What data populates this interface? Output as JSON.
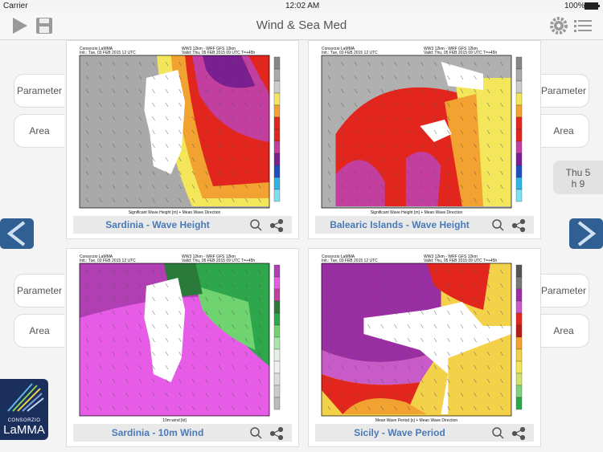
{
  "status_bar": {
    "carrier": "Carrier",
    "time": "12:02 AM",
    "battery": "100%"
  },
  "header": {
    "title": "Wind & Sea Med"
  },
  "buttons": {
    "parameter": "Parameter",
    "area": "Area"
  },
  "date_tab": {
    "day": "Thu 5",
    "hour": "h 9"
  },
  "logo": {
    "org": "CONSORZIO",
    "name": "LaMMA"
  },
  "panels": [
    {
      "caption": "Sardinia - Wave Height",
      "map": {
        "org": "Consorzio LaMMA",
        "model": "WW3 12km - WRF GFS 12km",
        "init": "Init.: Tue, 03 FEB 2015 12 UTC",
        "valid": "Valid: Thu, 05 FEB 2015 09 UTC T=+45h",
        "footer": "Significant Wave Height [m] + Mean Wave Direction"
      }
    },
    {
      "caption": "Balearic Islands - Wave Height",
      "map": {
        "org": "Consorzio LaMMA",
        "model": "WW3 12km - WRF GFS 12km",
        "init": "Init.: Tue, 03 FEB 2015 12 UTC",
        "valid": "Valid: Thu, 05 FEB 2015 09 UTC T=+45h",
        "footer": "Significant Wave Height [m] + Mean Wave Direction"
      }
    },
    {
      "caption": "Sardinia - 10m Wind",
      "map": {
        "org": "Consorzio LaMMA",
        "model": "WW3 12km - WRF GFS 12km",
        "init": "Init.: Tue, 03 FEB 2015 12 UTC",
        "valid": "Valid: Thu, 05 FEB 2015 09 UTC T=+45h",
        "footer": "10m wind [kt]"
      }
    },
    {
      "caption": "Sicily - Wave Period",
      "map": {
        "org": "Consorzio LaMMA",
        "model": "WW3 12km - WRF GFS 12km",
        "init": "Init.: Tue, 03 FEB 2015 12 UTC",
        "valid": "Valid: Thu, 05 FEB 2015 09 UTC T=+45h",
        "footer": "Mean Wave Period [s] + Mean Wave Direction"
      }
    }
  ]
}
